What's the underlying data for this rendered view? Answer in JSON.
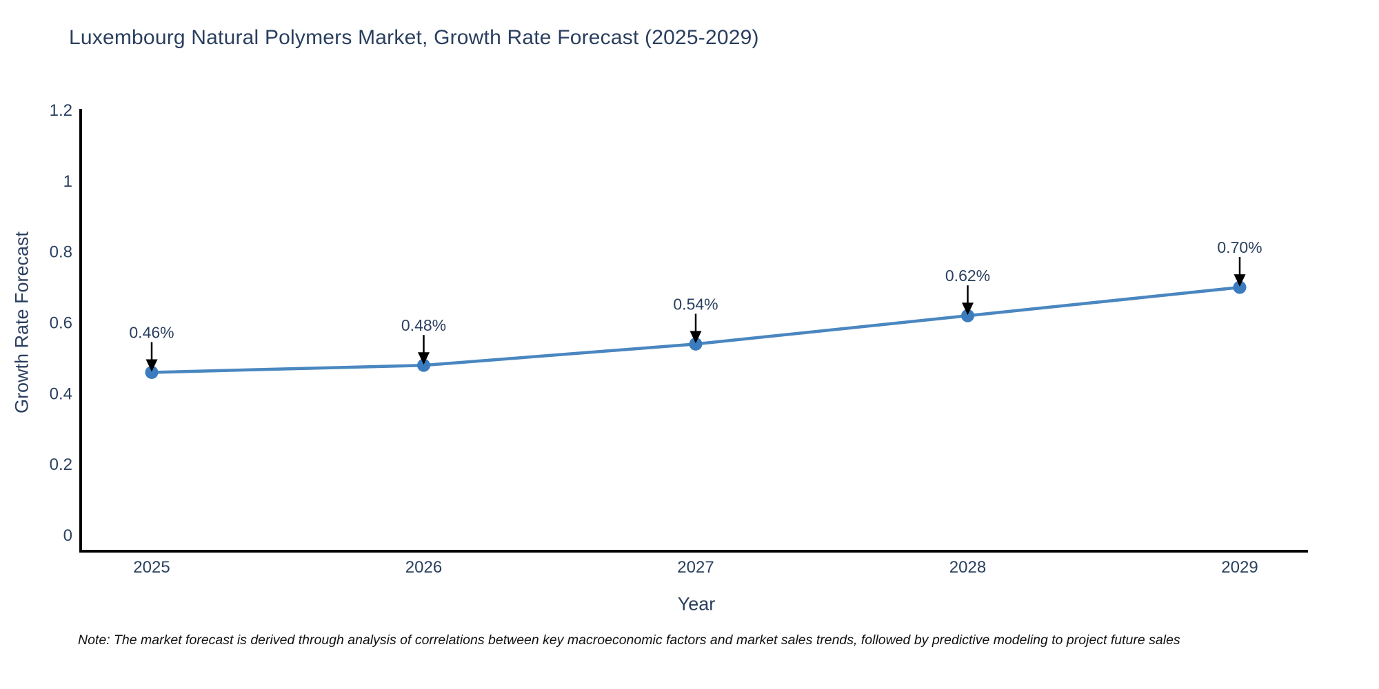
{
  "header": {
    "title": "Luxembourg Natural Polymers Market, Growth Rate Forecast (2025-2029)"
  },
  "chart_data": {
    "type": "line",
    "title": "Luxembourg Natural Polymers Market, Growth Rate Forecast (2025-2029)",
    "xlabel": "Year",
    "ylabel": "Growth Rate Forecast",
    "categories": [
      "2025",
      "2026",
      "2027",
      "2028",
      "2029"
    ],
    "series": [
      {
        "name": "Growth Rate Forecast",
        "values": [
          0.46,
          0.48,
          0.54,
          0.62,
          0.7
        ]
      }
    ],
    "point_labels": [
      "0.46%",
      "0.48%",
      "0.54%",
      "0.62%",
      "0.70%"
    ],
    "y_ticks": [
      0,
      0.2,
      0.4,
      0.6,
      0.8,
      1,
      1.2
    ],
    "y_tick_labels": [
      "0",
      "0.2",
      "0.4",
      "0.6",
      "0.8",
      "1",
      "1.2"
    ],
    "ylim": [
      0,
      1.2
    ],
    "grid": false,
    "legend_position": "none",
    "annotation_style": "black downward arrows from percent labels to markers"
  },
  "footer": {
    "note": "Note: The market forecast is derived through analysis of correlations between key macroeconomic factors and market sales trends, followed by predictive modeling to project future sales"
  },
  "colors": {
    "line": "#4a87c0",
    "marker": "#3a7cbd",
    "axis": "#000000",
    "text": "#2a3f5f",
    "annotation_arrow": "#000000",
    "note_text": "#111111",
    "background": "#ffffff"
  }
}
